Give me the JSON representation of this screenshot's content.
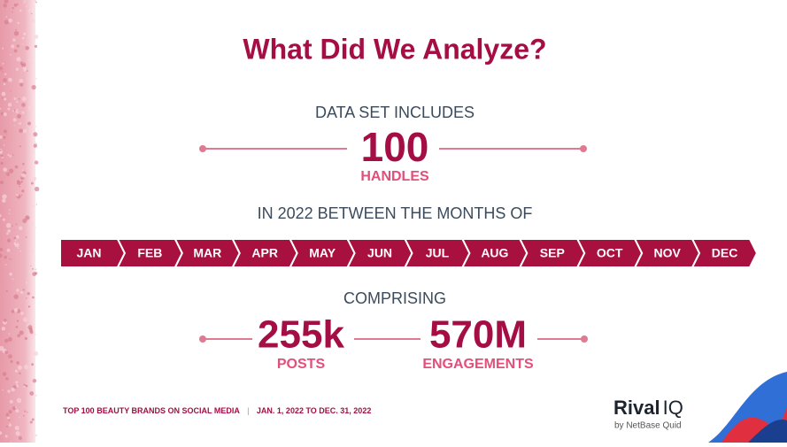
{
  "title": "What Did We Analyze?",
  "dataset": {
    "heading": "DATA SET INCLUDES",
    "value": "100",
    "label": "HANDLES"
  },
  "period": {
    "heading": "IN 2022 BETWEEN THE MONTHS OF",
    "months": [
      "JAN",
      "FEB",
      "MAR",
      "APR",
      "MAY",
      "JUN",
      "JUL",
      "AUG",
      "SEP",
      "OCT",
      "NOV",
      "DEC"
    ]
  },
  "comprising": {
    "heading": "COMPRISING",
    "stats": [
      {
        "value": "255k",
        "label": "POSTS"
      },
      {
        "value": "570M",
        "label": "ENGAGEMENTS"
      }
    ]
  },
  "footer": {
    "left": "TOP 100 BEAUTY BRANDS ON SOCIAL MEDIA",
    "separator": "|",
    "right": "JAN. 1, 2022 TO DEC. 31, 2022"
  },
  "logo": {
    "name": "Rival",
    "suffix": "IQ",
    "tagline": "by NetBase Quid"
  }
}
